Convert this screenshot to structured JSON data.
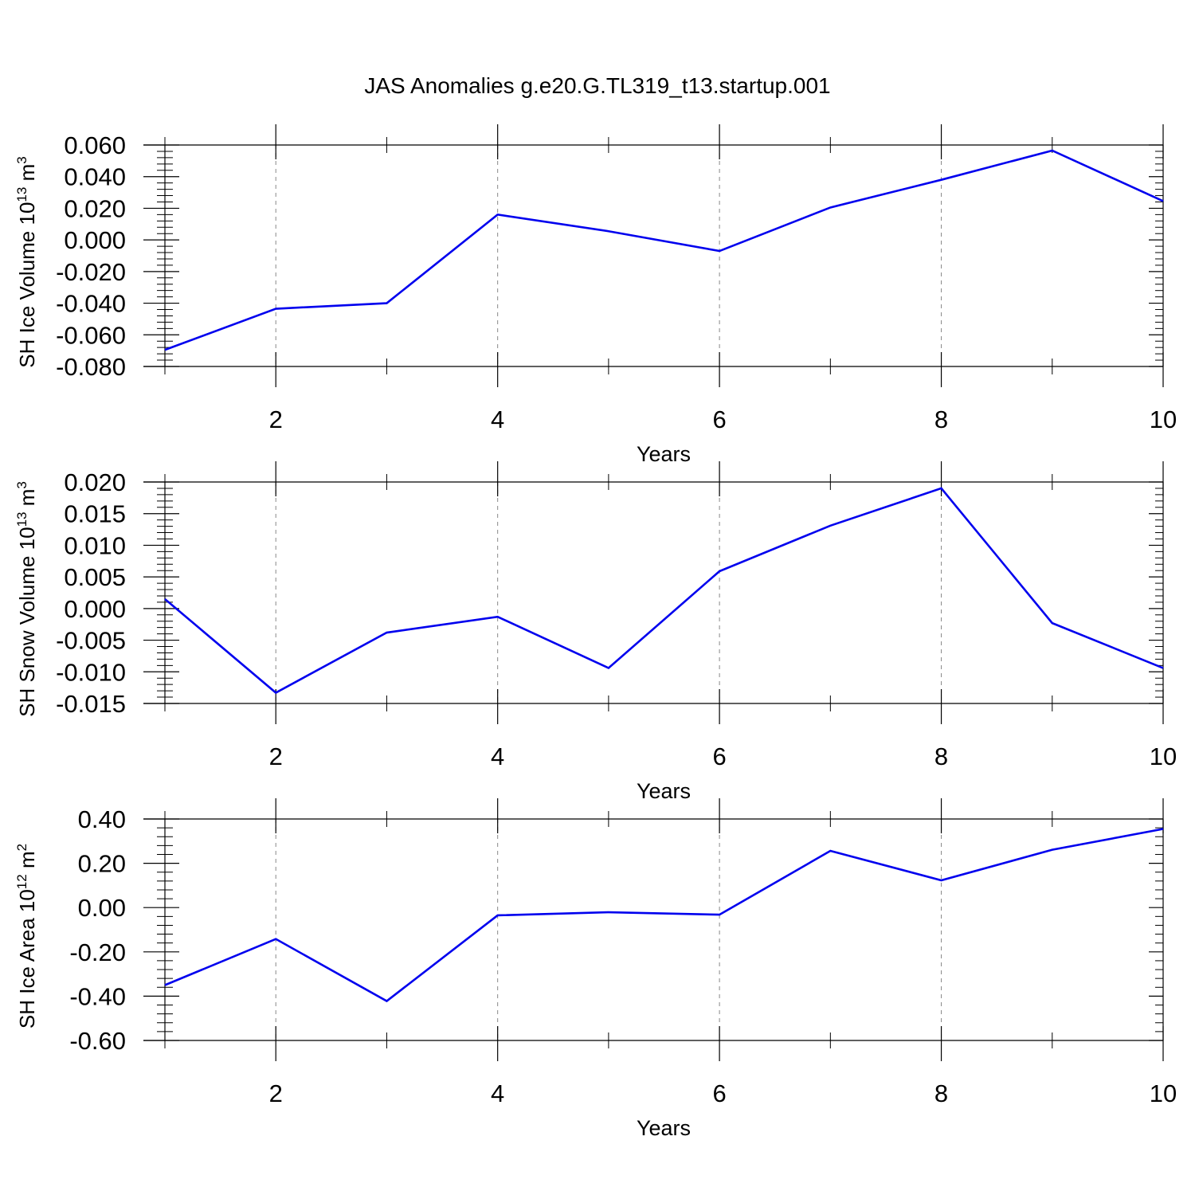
{
  "title": "JAS Anomalies g.e20.G.TL319_t13.startup.001",
  "colors": {
    "line": "#0000ee",
    "axis": "#000000",
    "grid": "#888888"
  },
  "chart_data": [
    {
      "type": "line",
      "ylabel": {
        "text": "SH Ice Volume 10",
        "sup": "13",
        "unit": " m",
        "unit_sup": "3"
      },
      "xlabel": "Years",
      "xlim": [
        1,
        10
      ],
      "ylim": [
        -0.08,
        0.06
      ],
      "yticks": [
        "0.060",
        "0.040",
        "0.020",
        "0.000",
        "-0.020",
        "-0.040",
        "-0.060",
        "-0.080"
      ],
      "ytick_values": [
        0.06,
        0.04,
        0.02,
        0.0,
        -0.02,
        -0.04,
        -0.06,
        -0.08
      ],
      "xticks": [
        "2",
        "4",
        "6",
        "8",
        "10"
      ],
      "xtick_values": [
        2,
        4,
        6,
        8,
        10
      ],
      "grid": "dashed vertical at major x ticks",
      "x": [
        1,
        2,
        3,
        4,
        5,
        6,
        7,
        8,
        9,
        10
      ],
      "values": [
        -0.0695,
        -0.0435,
        -0.04,
        0.016,
        0.0055,
        -0.007,
        0.0205,
        0.038,
        0.0565,
        0.0245
      ]
    },
    {
      "type": "line",
      "ylabel": {
        "text": "SH Snow Volume 10",
        "sup": "13",
        "unit": " m",
        "unit_sup": "3"
      },
      "xlabel": "Years",
      "xlim": [
        1,
        10
      ],
      "ylim": [
        -0.015,
        0.02
      ],
      "yticks": [
        "0.020",
        "0.015",
        "0.010",
        "0.005",
        "0.000",
        "-0.005",
        "-0.010",
        "-0.015"
      ],
      "ytick_values": [
        0.02,
        0.015,
        0.01,
        0.005,
        0.0,
        -0.005,
        -0.01,
        -0.015
      ],
      "xticks": [
        "2",
        "4",
        "6",
        "8",
        "10"
      ],
      "xtick_values": [
        2,
        4,
        6,
        8,
        10
      ],
      "grid": "dashed vertical at major x ticks",
      "x": [
        1,
        2,
        3,
        4,
        5,
        6,
        7,
        8,
        9,
        10
      ],
      "values": [
        0.0015,
        -0.0133,
        -0.0038,
        -0.0013,
        -0.0094,
        0.0059,
        0.0131,
        0.019,
        -0.0023,
        -0.0094
      ]
    },
    {
      "type": "line",
      "ylabel": {
        "text": "SH Ice Area 10",
        "sup": "12",
        "unit": " m",
        "unit_sup": "2"
      },
      "xlabel": "Years",
      "xlim": [
        1,
        10
      ],
      "ylim": [
        -0.6,
        0.4
      ],
      "yticks": [
        "0.40",
        "0.20",
        "0.00",
        "-0.20",
        "-0.40",
        "-0.60"
      ],
      "ytick_values": [
        0.4,
        0.2,
        0.0,
        -0.2,
        -0.4,
        -0.6
      ],
      "xticks": [
        "2",
        "4",
        "6",
        "8",
        "10"
      ],
      "xtick_values": [
        2,
        4,
        6,
        8,
        10
      ],
      "grid": "dashed vertical at major x ticks",
      "x": [
        1,
        2,
        3,
        4,
        5,
        6,
        7,
        8,
        9,
        10
      ],
      "values": [
        -0.35,
        -0.142,
        -0.422,
        -0.035,
        -0.021,
        -0.032,
        0.256,
        0.123,
        0.261,
        0.355
      ]
    }
  ]
}
